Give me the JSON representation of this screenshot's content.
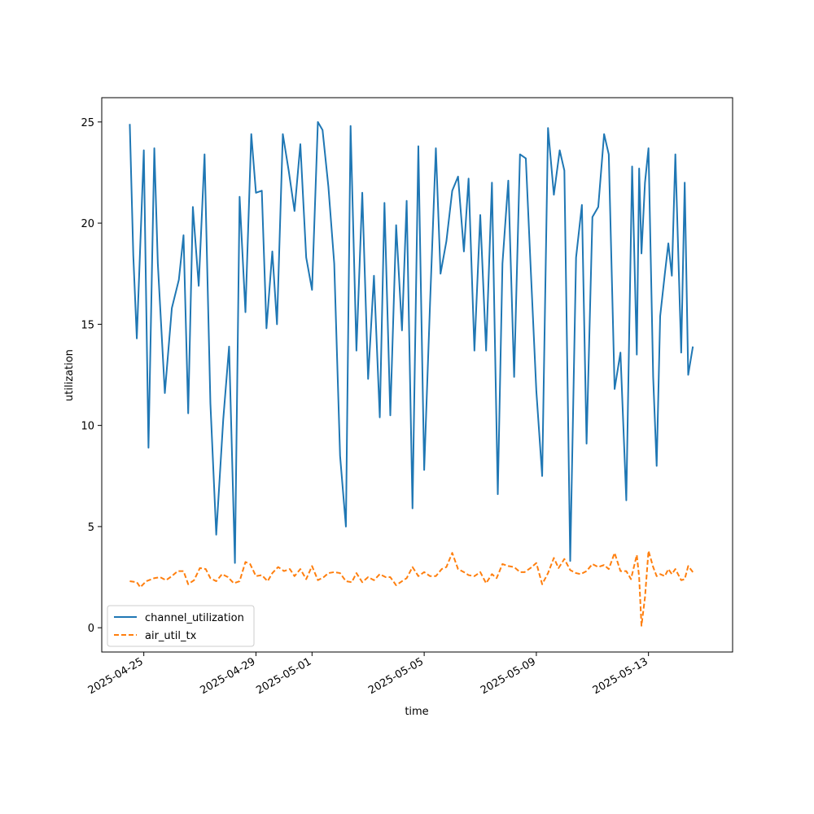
{
  "chart_data": {
    "type": "line",
    "xlabel": "time",
    "ylabel": "utilization",
    "x_range": [
      "2025-04-23T12:00",
      "2025-05-16T00:00"
    ],
    "ylim": [
      -1.2,
      26.2
    ],
    "x_ticks": [
      "2025-04-25",
      "2025-04-29",
      "2025-05-01",
      "2025-05-05",
      "2025-05-09",
      "2025-05-13"
    ],
    "y_ticks": [
      0,
      5,
      10,
      15,
      20,
      25
    ],
    "grid": false,
    "legend_position": "lower-left",
    "series": [
      {
        "name": "channel_utilization",
        "color": "#1f77b4",
        "style": "solid",
        "points": [
          [
            "2025-04-24T12:00",
            24.9
          ],
          [
            "2025-04-24T15:00",
            18.4
          ],
          [
            "2025-04-24T18:00",
            14.3
          ],
          [
            "2025-04-25T00:00",
            23.6
          ],
          [
            "2025-04-25T04:00",
            8.9
          ],
          [
            "2025-04-25T09:00",
            23.7
          ],
          [
            "2025-04-25T12:00",
            18.0
          ],
          [
            "2025-04-25T18:00",
            11.6
          ],
          [
            "2025-04-26T00:00",
            15.8
          ],
          [
            "2025-04-26T06:00",
            17.2
          ],
          [
            "2025-04-26T10:00",
            19.4
          ],
          [
            "2025-04-26T14:00",
            10.6
          ],
          [
            "2025-04-26T18:00",
            20.8
          ],
          [
            "2025-04-26T23:00",
            16.9
          ],
          [
            "2025-04-27T04:00",
            23.4
          ],
          [
            "2025-04-27T09:00",
            11.1
          ],
          [
            "2025-04-27T14:00",
            4.6
          ],
          [
            "2025-04-27T20:00",
            10.3
          ],
          [
            "2025-04-28T01:00",
            13.9
          ],
          [
            "2025-04-28T06:00",
            3.2
          ],
          [
            "2025-04-28T10:00",
            21.3
          ],
          [
            "2025-04-28T15:00",
            15.6
          ],
          [
            "2025-04-28T20:00",
            24.4
          ],
          [
            "2025-04-29T00:00",
            21.5
          ],
          [
            "2025-04-29T05:00",
            21.6
          ],
          [
            "2025-04-29T09:00",
            14.8
          ],
          [
            "2025-04-29T14:00",
            18.6
          ],
          [
            "2025-04-29T18:00",
            15.0
          ],
          [
            "2025-04-29T23:00",
            24.4
          ],
          [
            "2025-04-30T04:00",
            22.6
          ],
          [
            "2025-04-30T09:00",
            20.6
          ],
          [
            "2025-04-30T14:00",
            23.9
          ],
          [
            "2025-04-30T19:00",
            18.3
          ],
          [
            "2025-05-01T00:00",
            16.7
          ],
          [
            "2025-05-01T05:00",
            25.0
          ],
          [
            "2025-05-01T09:00",
            24.6
          ],
          [
            "2025-05-01T14:00",
            21.8
          ],
          [
            "2025-05-01T19:00",
            18.0
          ],
          [
            "2025-05-02T00:00",
            8.5
          ],
          [
            "2025-05-02T05:00",
            5.0
          ],
          [
            "2025-05-02T09:00",
            24.8
          ],
          [
            "2025-05-02T14:00",
            13.7
          ],
          [
            "2025-05-02T19:00",
            21.5
          ],
          [
            "2025-05-03T00:00",
            12.3
          ],
          [
            "2025-05-03T05:00",
            17.4
          ],
          [
            "2025-05-03T10:00",
            10.4
          ],
          [
            "2025-05-03T14:00",
            21.0
          ],
          [
            "2025-05-03T19:00",
            10.5
          ],
          [
            "2025-05-04T00:00",
            19.9
          ],
          [
            "2025-05-04T05:00",
            14.7
          ],
          [
            "2025-05-04T09:00",
            21.1
          ],
          [
            "2025-05-04T14:00",
            5.9
          ],
          [
            "2025-05-04T19:00",
            23.8
          ],
          [
            "2025-05-05T00:00",
            7.8
          ],
          [
            "2025-05-05T05:00",
            16.0
          ],
          [
            "2025-05-05T10:00",
            23.7
          ],
          [
            "2025-05-05T14:00",
            17.5
          ],
          [
            "2025-05-05T19:00",
            19.1
          ],
          [
            "2025-05-06T00:00",
            21.6
          ],
          [
            "2025-05-06T05:00",
            22.3
          ],
          [
            "2025-05-06T10:00",
            18.6
          ],
          [
            "2025-05-06T14:00",
            22.2
          ],
          [
            "2025-05-06T19:00",
            13.7
          ],
          [
            "2025-05-07T00:00",
            20.4
          ],
          [
            "2025-05-07T05:00",
            13.7
          ],
          [
            "2025-05-07T10:00",
            22.0
          ],
          [
            "2025-05-07T15:00",
            6.6
          ],
          [
            "2025-05-07T19:00",
            18.0
          ],
          [
            "2025-05-08T00:00",
            22.1
          ],
          [
            "2025-05-08T05:00",
            12.4
          ],
          [
            "2025-05-08T10:00",
            23.4
          ],
          [
            "2025-05-08T15:00",
            23.2
          ],
          [
            "2025-05-08T19:00",
            18.0
          ],
          [
            "2025-05-09T00:00",
            11.7
          ],
          [
            "2025-05-09T05:00",
            7.5
          ],
          [
            "2025-05-09T10:00",
            24.7
          ],
          [
            "2025-05-09T15:00",
            21.4
          ],
          [
            "2025-05-09T20:00",
            23.6
          ],
          [
            "2025-05-10T00:00",
            22.6
          ],
          [
            "2025-05-10T05:00",
            3.3
          ],
          [
            "2025-05-10T10:00",
            18.3
          ],
          [
            "2025-05-10T15:00",
            20.9
          ],
          [
            "2025-05-10T19:00",
            9.1
          ],
          [
            "2025-05-11T00:00",
            20.3
          ],
          [
            "2025-05-11T05:00",
            20.8
          ],
          [
            "2025-05-11T10:00",
            24.4
          ],
          [
            "2025-05-11T14:00",
            23.4
          ],
          [
            "2025-05-11T19:00",
            11.8
          ],
          [
            "2025-05-12T00:00",
            13.6
          ],
          [
            "2025-05-12T05:00",
            6.3
          ],
          [
            "2025-05-12T10:00",
            22.8
          ],
          [
            "2025-05-12T14:00",
            13.5
          ],
          [
            "2025-05-12T16:00",
            22.7
          ],
          [
            "2025-05-12T18:00",
            18.5
          ],
          [
            "2025-05-12T21:00",
            22.0
          ],
          [
            "2025-05-13T00:00",
            23.7
          ],
          [
            "2025-05-13T04:00",
            12.4
          ],
          [
            "2025-05-13T07:00",
            8.0
          ],
          [
            "2025-05-13T10:00",
            15.4
          ],
          [
            "2025-05-13T14:00",
            17.5
          ],
          [
            "2025-05-13T17:00",
            19.0
          ],
          [
            "2025-05-13T20:00",
            17.4
          ],
          [
            "2025-05-13T23:00",
            23.4
          ],
          [
            "2025-05-14T04:00",
            13.6
          ],
          [
            "2025-05-14T07:00",
            22.0
          ],
          [
            "2025-05-14T10:00",
            12.5
          ],
          [
            "2025-05-14T14:00",
            13.9
          ]
        ]
      },
      {
        "name": "air_util_tx",
        "color": "#ff7f0e",
        "style": "dashed",
        "points": [
          [
            "2025-04-24T12:00",
            2.3
          ],
          [
            "2025-04-24T18:00",
            2.25
          ],
          [
            "2025-04-24T21:00",
            2.0
          ],
          [
            "2025-04-25T02:00",
            2.3
          ],
          [
            "2025-04-25T09:00",
            2.45
          ],
          [
            "2025-04-25T14:00",
            2.5
          ],
          [
            "2025-04-25T19:00",
            2.35
          ],
          [
            "2025-04-26T00:00",
            2.55
          ],
          [
            "2025-04-26T05:00",
            2.8
          ],
          [
            "2025-04-26T10:00",
            2.8
          ],
          [
            "2025-04-26T14:00",
            2.15
          ],
          [
            "2025-04-26T19:00",
            2.35
          ],
          [
            "2025-04-27T00:00",
            2.95
          ],
          [
            "2025-04-27T05:00",
            2.9
          ],
          [
            "2025-04-27T09:00",
            2.45
          ],
          [
            "2025-04-27T14:00",
            2.3
          ],
          [
            "2025-04-27T19:00",
            2.65
          ],
          [
            "2025-04-28T00:00",
            2.5
          ],
          [
            "2025-04-28T05:00",
            2.2
          ],
          [
            "2025-04-28T10:00",
            2.3
          ],
          [
            "2025-04-28T15:00",
            3.25
          ],
          [
            "2025-04-28T19:00",
            3.15
          ],
          [
            "2025-04-29T00:00",
            2.55
          ],
          [
            "2025-04-29T05:00",
            2.6
          ],
          [
            "2025-04-29T10:00",
            2.3
          ],
          [
            "2025-04-29T14:00",
            2.7
          ],
          [
            "2025-04-29T19:00",
            3.0
          ],
          [
            "2025-04-30T00:00",
            2.8
          ],
          [
            "2025-04-30T05:00",
            2.9
          ],
          [
            "2025-04-30T09:00",
            2.55
          ],
          [
            "2025-04-30T14:00",
            2.9
          ],
          [
            "2025-04-30T19:00",
            2.4
          ],
          [
            "2025-05-01T00:00",
            3.05
          ],
          [
            "2025-05-01T05:00",
            2.35
          ],
          [
            "2025-05-01T10:00",
            2.5
          ],
          [
            "2025-05-01T14:00",
            2.7
          ],
          [
            "2025-05-01T19:00",
            2.75
          ],
          [
            "2025-05-02T00:00",
            2.7
          ],
          [
            "2025-05-02T05:00",
            2.3
          ],
          [
            "2025-05-02T10:00",
            2.25
          ],
          [
            "2025-05-02T14:00",
            2.7
          ],
          [
            "2025-05-02T19:00",
            2.25
          ],
          [
            "2025-05-03T00:00",
            2.5
          ],
          [
            "2025-05-03T05:00",
            2.35
          ],
          [
            "2025-05-03T10:00",
            2.65
          ],
          [
            "2025-05-03T15:00",
            2.5
          ],
          [
            "2025-05-03T19:00",
            2.5
          ],
          [
            "2025-05-04T00:00",
            2.1
          ],
          [
            "2025-05-04T05:00",
            2.3
          ],
          [
            "2025-05-04T09:00",
            2.45
          ],
          [
            "2025-05-04T14:00",
            3.0
          ],
          [
            "2025-05-04T19:00",
            2.55
          ],
          [
            "2025-05-05T00:00",
            2.75
          ],
          [
            "2025-05-05T05:00",
            2.55
          ],
          [
            "2025-05-05T10:00",
            2.55
          ],
          [
            "2025-05-05T15:00",
            2.9
          ],
          [
            "2025-05-05T19:00",
            3.0
          ],
          [
            "2025-05-06T00:00",
            3.7
          ],
          [
            "2025-05-06T05:00",
            2.9
          ],
          [
            "2025-05-06T10:00",
            2.75
          ],
          [
            "2025-05-06T14:00",
            2.6
          ],
          [
            "2025-05-06T19:00",
            2.55
          ],
          [
            "2025-05-07T00:00",
            2.75
          ],
          [
            "2025-05-07T05:00",
            2.2
          ],
          [
            "2025-05-07T10:00",
            2.65
          ],
          [
            "2025-05-07T14:00",
            2.45
          ],
          [
            "2025-05-07T19:00",
            3.15
          ],
          [
            "2025-05-08T00:00",
            3.05
          ],
          [
            "2025-05-08T05:00",
            3.0
          ],
          [
            "2025-05-08T10:00",
            2.75
          ],
          [
            "2025-05-08T14:00",
            2.75
          ],
          [
            "2025-05-08T19:00",
            2.95
          ],
          [
            "2025-05-09T00:00",
            3.2
          ],
          [
            "2025-05-09T05:00",
            2.15
          ],
          [
            "2025-05-09T10:00",
            2.7
          ],
          [
            "2025-05-09T15:00",
            3.45
          ],
          [
            "2025-05-09T19:00",
            2.95
          ],
          [
            "2025-05-10T00:00",
            3.4
          ],
          [
            "2025-05-10T05:00",
            2.85
          ],
          [
            "2025-05-10T10:00",
            2.7
          ],
          [
            "2025-05-10T14:00",
            2.65
          ],
          [
            "2025-05-10T19:00",
            2.8
          ],
          [
            "2025-05-11T00:00",
            3.15
          ],
          [
            "2025-05-11T05:00",
            3.0
          ],
          [
            "2025-05-11T10:00",
            3.1
          ],
          [
            "2025-05-11T14:00",
            2.9
          ],
          [
            "2025-05-11T19:00",
            3.7
          ],
          [
            "2025-05-12T00:00",
            2.8
          ],
          [
            "2025-05-12T05:00",
            2.8
          ],
          [
            "2025-05-12T09:00",
            2.4
          ],
          [
            "2025-05-12T14:00",
            3.6
          ],
          [
            "2025-05-12T16:00",
            2.5
          ],
          [
            "2025-05-12T18:00",
            0.1
          ],
          [
            "2025-05-12T21:00",
            1.5
          ],
          [
            "2025-05-13T00:00",
            3.8
          ],
          [
            "2025-05-13T04:00",
            3.0
          ],
          [
            "2025-05-13T07:00",
            2.55
          ],
          [
            "2025-05-13T10:00",
            2.65
          ],
          [
            "2025-05-13T14:00",
            2.55
          ],
          [
            "2025-05-13T17:00",
            2.9
          ],
          [
            "2025-05-13T20:00",
            2.65
          ],
          [
            "2025-05-13T23:00",
            2.9
          ],
          [
            "2025-05-14T04:00",
            2.35
          ],
          [
            "2025-05-14T07:00",
            2.4
          ],
          [
            "2025-05-14T10:00",
            3.05
          ],
          [
            "2025-05-14T14:00",
            2.75
          ]
        ]
      }
    ]
  }
}
